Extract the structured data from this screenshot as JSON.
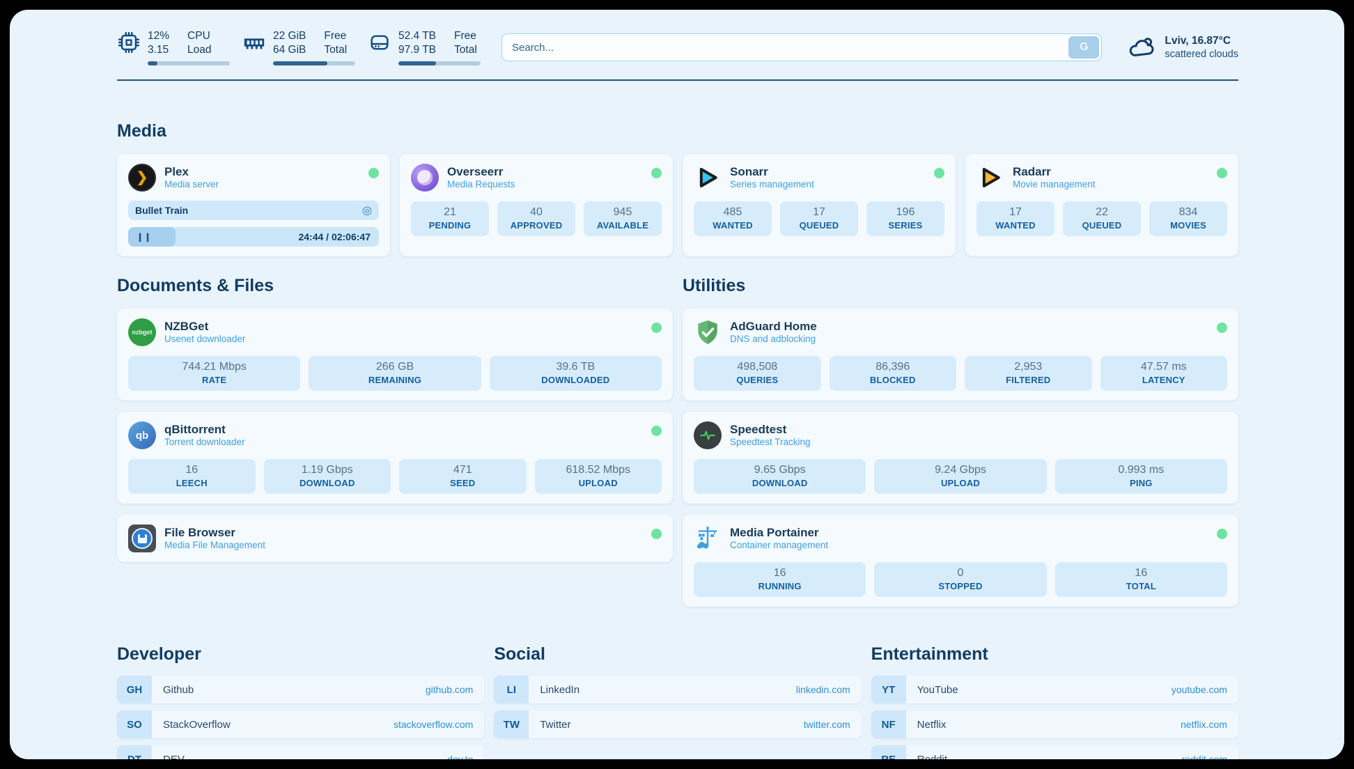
{
  "header": {
    "cpu": {
      "value_top": "12%",
      "value_bottom": "3.15",
      "label_top": "CPU",
      "label_bottom": "Load",
      "progress": 12
    },
    "ram": {
      "value_top": "22 GiB",
      "value_bottom": "64 GiB",
      "label_top": "Free",
      "label_bottom": "Total",
      "progress": 66
    },
    "disk": {
      "value_top": "52.4 TB",
      "value_bottom": "97.9 TB",
      "label_top": "Free",
      "label_bottom": "Total",
      "progress": 46
    },
    "search": {
      "placeholder": "Search...",
      "button_label": "G"
    },
    "weather": {
      "location": "Lviv, 16.87°C",
      "condition": "scattered clouds"
    }
  },
  "sections": {
    "media": "Media",
    "documents": "Documents & Files",
    "utilities": "Utilities",
    "developer": "Developer",
    "social": "Social",
    "entertainment": "Entertainment"
  },
  "cards": {
    "plex": {
      "title": "Plex",
      "subtitle": "Media server",
      "icon_glyph": "❯",
      "now_playing": "Bullet Train",
      "media_icon": "◎",
      "pause_glyph": "❙❙",
      "time": "24:44 / 02:06:47",
      "progress": 19
    },
    "overseerr": {
      "title": "Overseerr",
      "subtitle": "Media Requests",
      "stats": [
        {
          "value": "21",
          "label": "PENDING"
        },
        {
          "value": "40",
          "label": "APPROVED"
        },
        {
          "value": "945",
          "label": "AVAILABLE"
        }
      ]
    },
    "sonarr": {
      "title": "Sonarr",
      "subtitle": "Series management",
      "stats": [
        {
          "value": "485",
          "label": "WANTED"
        },
        {
          "value": "17",
          "label": "QUEUED"
        },
        {
          "value": "196",
          "label": "SERIES"
        }
      ]
    },
    "radarr": {
      "title": "Radarr",
      "subtitle": "Movie management",
      "stats": [
        {
          "value": "17",
          "label": "WANTED"
        },
        {
          "value": "22",
          "label": "QUEUED"
        },
        {
          "value": "834",
          "label": "MOVIES"
        }
      ]
    },
    "nzbget": {
      "title": "NZBGet",
      "subtitle": "Usenet downloader",
      "icon_text": "nzbget",
      "stats": [
        {
          "value": "744.21 Mbps",
          "label": "RATE"
        },
        {
          "value": "266 GB",
          "label": "REMAINING"
        },
        {
          "value": "39.6 TB",
          "label": "DOWNLOADED"
        }
      ]
    },
    "qbittorrent": {
      "title": "qBittorrent",
      "subtitle": "Torrent downloader",
      "icon_text": "qb",
      "stats": [
        {
          "value": "16",
          "label": "LEECH"
        },
        {
          "value": "1.19 Gbps",
          "label": "DOWNLOAD"
        },
        {
          "value": "471",
          "label": "SEED"
        },
        {
          "value": "618.52 Mbps",
          "label": "UPLOAD"
        }
      ]
    },
    "filebrowser": {
      "title": "File Browser",
      "subtitle": "Media File Management"
    },
    "adguard": {
      "title": "AdGuard Home",
      "subtitle": "DNS and adblocking",
      "stats": [
        {
          "value": "498,508",
          "label": "QUERIES"
        },
        {
          "value": "86,396",
          "label": "BLOCKED"
        },
        {
          "value": "2,953",
          "label": "FILTERED"
        },
        {
          "value": "47.57 ms",
          "label": "LATENCY"
        }
      ]
    },
    "speedtest": {
      "title": "Speedtest",
      "subtitle": "Speedtest Tracking",
      "stats": [
        {
          "value": "9.65 Gbps",
          "label": "DOWNLOAD"
        },
        {
          "value": "9.24 Gbps",
          "label": "UPLOAD"
        },
        {
          "value": "0.993 ms",
          "label": "PING"
        }
      ]
    },
    "portainer": {
      "title": "Media Portainer",
      "subtitle": "Container management",
      "stats": [
        {
          "value": "16",
          "label": "RUNNING"
        },
        {
          "value": "0",
          "label": "STOPPED"
        },
        {
          "value": "16",
          "label": "TOTAL"
        }
      ]
    }
  },
  "bookmarks": {
    "developer": [
      {
        "abbr": "GH",
        "name": "Github",
        "url": "github.com"
      },
      {
        "abbr": "SO",
        "name": "StackOverflow",
        "url": "stackoverflow.com"
      },
      {
        "abbr": "DT",
        "name": "DEV",
        "url": "dev.to"
      }
    ],
    "social": [
      {
        "abbr": "LI",
        "name": "LinkedIn",
        "url": "linkedin.com"
      },
      {
        "abbr": "TW",
        "name": "Twitter",
        "url": "twitter.com"
      }
    ],
    "entertainment": [
      {
        "abbr": "YT",
        "name": "YouTube",
        "url": "youtube.com"
      },
      {
        "abbr": "NF",
        "name": "Netflix",
        "url": "netflix.com"
      },
      {
        "abbr": "RE",
        "name": "Reddit",
        "url": "reddit.com"
      }
    ]
  },
  "colors": {
    "panel": "#e9f3fc",
    "accent": "#135f9e",
    "status_green": "#6fe3a2",
    "navy_text": "#123e66",
    "subtitle_blue": "#41a0e0"
  }
}
